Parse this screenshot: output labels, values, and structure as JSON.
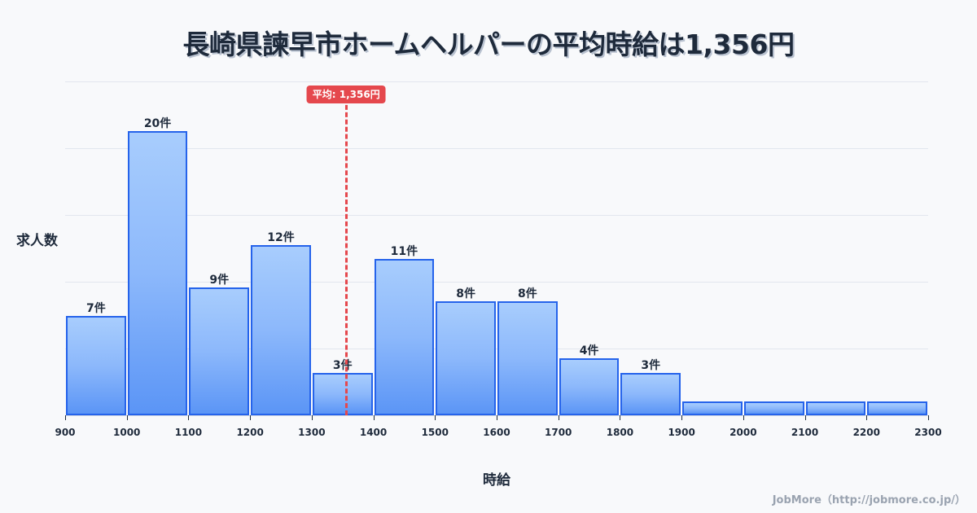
{
  "title": "長崎県諫早市ホームヘルパーの平均時給は1,356円",
  "average": {
    "value": 1356,
    "label": "平均: 1,356円",
    "color": "#e5484d"
  },
  "axes": {
    "ylabel": "求人数",
    "xlabel": "時給"
  },
  "footer": "JobMore（http://jobmore.co.jp/）",
  "colors": {
    "bar_border": "#2563eb",
    "bar_top": "#a8cdfd",
    "bar_bottom": "#5b95f6",
    "text": "#1e2a3b"
  },
  "chart_data": {
    "type": "bar",
    "title": "長崎県諫早市ホームヘルパーの平均時給は1,356円",
    "xlabel": "時給",
    "ylabel": "求人数",
    "bins": [
      {
        "from": 900,
        "to": 1000,
        "count": 7,
        "label": "7件"
      },
      {
        "from": 1000,
        "to": 1100,
        "count": 20,
        "label": "20件"
      },
      {
        "from": 1100,
        "to": 1200,
        "count": 9,
        "label": "9件"
      },
      {
        "from": 1200,
        "to": 1300,
        "count": 12,
        "label": "12件"
      },
      {
        "from": 1300,
        "to": 1400,
        "count": 3,
        "label": "3件"
      },
      {
        "from": 1400,
        "to": 1500,
        "count": 11,
        "label": "11件"
      },
      {
        "from": 1500,
        "to": 1600,
        "count": 8,
        "label": "8件"
      },
      {
        "from": 1600,
        "to": 1700,
        "count": 8,
        "label": "8件"
      },
      {
        "from": 1700,
        "to": 1800,
        "count": 4,
        "label": "4件"
      },
      {
        "from": 1800,
        "to": 1900,
        "count": 3,
        "label": "3件"
      },
      {
        "from": 1900,
        "to": 2000,
        "count": 1,
        "label": ""
      },
      {
        "from": 2000,
        "to": 2100,
        "count": 1,
        "label": ""
      },
      {
        "from": 2100,
        "to": 2200,
        "count": 1,
        "label": ""
      },
      {
        "from": 2200,
        "to": 2300,
        "count": 1,
        "label": ""
      }
    ],
    "x_ticks": [
      "900",
      "1000",
      "1100",
      "1200",
      "1300",
      "1400",
      "1500",
      "1600",
      "1700",
      "1800",
      "1900",
      "2000",
      "2100",
      "2200",
      "2300"
    ],
    "xlim": [
      900,
      2300
    ],
    "ylim": [
      0,
      23.5
    ],
    "grid": true,
    "legend": null,
    "annotations": [
      {
        "type": "vline",
        "x": 1356,
        "label": "平均: 1,356円"
      }
    ]
  }
}
